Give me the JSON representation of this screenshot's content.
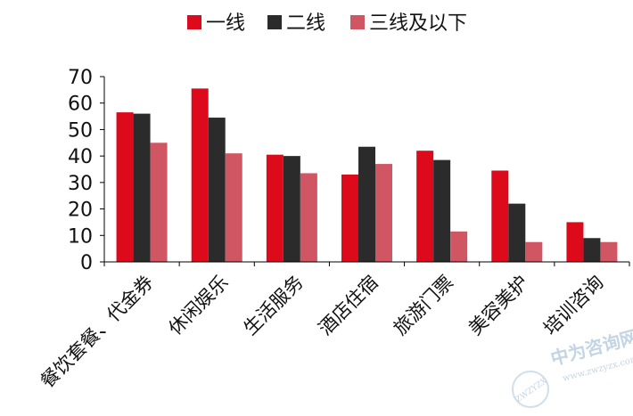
{
  "chart_data": {
    "type": "bar",
    "categories": [
      "餐饮套餐、代金券",
      "休闲娱乐",
      "生活服务",
      "酒店住宿",
      "旅游门票",
      "美容美护",
      "培训咨询"
    ],
    "series": [
      {
        "name": "一线",
        "color": "#dd0a1c",
        "values": [
          56.5,
          65.5,
          40.5,
          33,
          42,
          34.5,
          15
        ]
      },
      {
        "name": "二线",
        "color": "#2b2b2b",
        "values": [
          56,
          54.5,
          40,
          43.5,
          38.5,
          22,
          9
        ]
      },
      {
        "name": "三线及以下",
        "color": "#d15663",
        "values": [
          45,
          41,
          33.5,
          37,
          11.5,
          7.5,
          7.5
        ]
      }
    ],
    "yticks": [
      0,
      10,
      20,
      30,
      40,
      50,
      60,
      70
    ],
    "ylim": [
      0,
      70
    ],
    "grid": false,
    "legend": "top"
  },
  "watermark": {
    "text": "中为咨询网",
    "url": "www.zwzyzx.com",
    "badge": "ZWZYZX"
  }
}
